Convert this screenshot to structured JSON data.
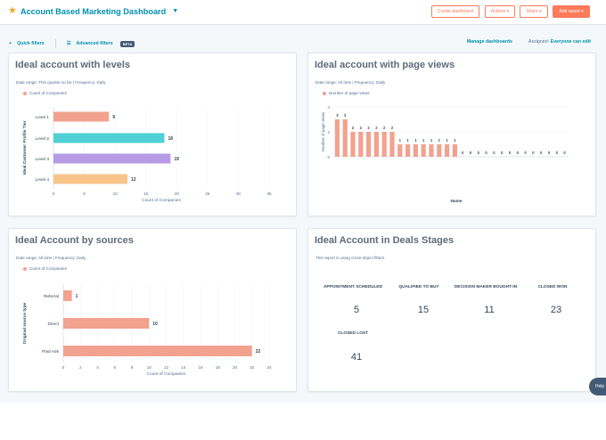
{
  "header": {
    "title": "Account Based Marketing Dashboard",
    "buttons": {
      "create": "Create dashboard",
      "actions": "Actions ▾",
      "share": "Share ▾",
      "add_report": "Add report ▾"
    }
  },
  "subbar": {
    "quick_filters": "Quick filters",
    "advanced_filters": "Advanced filters",
    "beta": "BETA",
    "manage": "Manage dashboards",
    "assigned_label": "Assigned:",
    "assigned_value": "Everyone can edit"
  },
  "cards": {
    "levels": {
      "title": "Ideal account with levels",
      "meta": "Date range: This quarter so far  |  Frequency: Daily",
      "legend": "Count of Companies"
    },
    "page_views": {
      "title": "Ideal account with page views",
      "meta": "Date range: All time  |  Frequency: Daily",
      "legend": "Number of page views"
    },
    "sources": {
      "title": "Ideal Account by sources",
      "meta": "Date range: All time  |  Frequency: Daily",
      "legend": "Count of Companies"
    },
    "deals": {
      "title": "Ideal Account in Deals Stages",
      "note": "This report is using cross-object filters.",
      "stages": [
        {
          "label": "APPOINTMENT SCHEDULED",
          "value": "5"
        },
        {
          "label": "QUALIFIED TO BUY",
          "value": "15"
        },
        {
          "label": "DECISION MAKER BOUGHT-IN",
          "value": "11"
        },
        {
          "label": "CLOSED WON",
          "value": "23"
        },
        {
          "label": "CLOSED LOST",
          "value": "41"
        }
      ]
    }
  },
  "help": "Help",
  "chart_data": [
    {
      "type": "bar",
      "orientation": "horizontal",
      "categories": [
        "Level 1",
        "Level 2",
        "Level 3",
        "Level 4"
      ],
      "values": [
        9,
        18,
        19,
        12
      ],
      "colors": [
        "#f2a28e",
        "#4fd0d6",
        "#b69ae6",
        "#f8c48a"
      ],
      "xlabel": "Count of Companies",
      "ylabel": "Ideal Customer Profile Tier",
      "xticks": [
        0,
        5,
        10,
        15,
        20,
        25,
        30,
        35
      ],
      "xlim": [
        0,
        35
      ]
    },
    {
      "type": "bar",
      "categories": [
        "",
        "",
        "",
        "",
        "",
        "",
        "",
        "",
        "",
        "",
        "",
        "",
        "",
        "",
        "",
        "",
        "",
        "",
        "",
        "",
        "",
        "",
        "",
        "",
        "",
        "",
        "",
        "",
        "",
        ""
      ],
      "values": [
        3,
        3,
        2,
        2,
        2,
        2,
        2,
        2,
        1,
        1,
        1,
        1,
        1,
        1,
        1,
        1,
        0,
        0,
        0,
        0,
        0,
        0,
        0,
        0,
        0,
        0,
        0,
        0,
        0,
        0
      ],
      "xlabel": "Name",
      "ylabel": "Number of page views",
      "yticks": [
        0,
        2,
        4
      ],
      "ylim": [
        0,
        4
      ]
    },
    {
      "type": "bar",
      "orientation": "horizontal",
      "categories": [
        "Referral",
        "Direct",
        "Paid Ads"
      ],
      "values": [
        1,
        10,
        22
      ],
      "xlabel": "Count of Companies",
      "ylabel": "Original source type",
      "xticks": [
        0,
        2,
        4,
        6,
        8,
        10,
        12,
        14,
        16,
        18,
        20,
        22,
        24
      ],
      "xlim": [
        0,
        24
      ]
    }
  ]
}
